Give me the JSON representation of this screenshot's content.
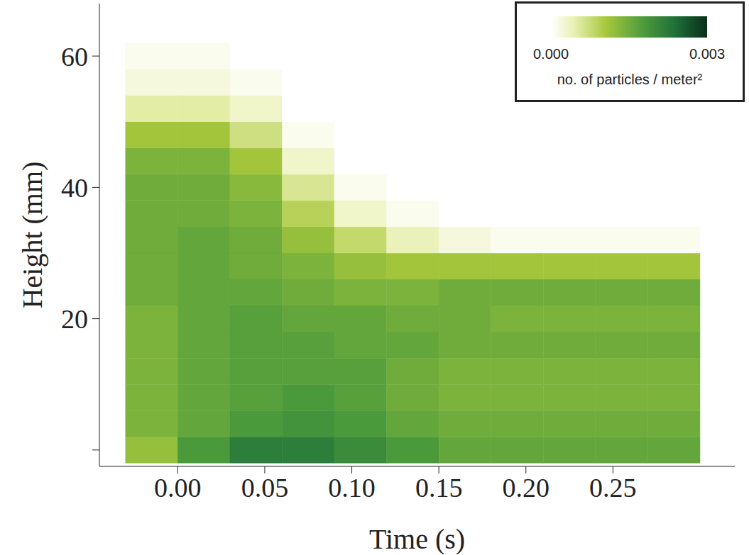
{
  "chart_data": {
    "type": "heatmap",
    "xlabel": "Time (s)",
    "ylabel": "Height (mm)",
    "xlim": [
      -0.045,
      0.32
    ],
    "ylim": [
      -2.5,
      68
    ],
    "xticks": [
      {
        "value": 0,
        "label": "0.00"
      },
      {
        "value": 0.05,
        "label": "0.05"
      },
      {
        "value": 0.1,
        "label": "0.10"
      },
      {
        "value": 0.15,
        "label": "0.15"
      },
      {
        "value": 0.2,
        "label": "0.20"
      },
      {
        "value": 0.25,
        "label": "0.25"
      }
    ],
    "yticks": [
      0,
      20,
      40,
      60
    ],
    "heatmap": {
      "x_bins": [
        -0.03,
        0.0,
        0.03,
        0.06,
        0.09,
        0.12,
        0.15,
        0.18,
        0.21,
        0.24,
        0.27,
        0.3
      ],
      "y_bins": [
        -2,
        2,
        6,
        10,
        14,
        18,
        22,
        26,
        30,
        34,
        38,
        42,
        46,
        50,
        54,
        58,
        62
      ],
      "values": [
        [
          0.0012,
          0.0018,
          0.0022,
          0.0022,
          0.002,
          0.0018,
          0.0016,
          0.0016,
          0.0016,
          0.0016,
          0.0016
        ],
        [
          0.0014,
          0.0016,
          0.0018,
          0.0019,
          0.0018,
          0.0016,
          0.0015,
          0.0015,
          0.0015,
          0.0015,
          0.0015
        ],
        [
          0.0014,
          0.0016,
          0.0017,
          0.0018,
          0.0017,
          0.0015,
          0.0014,
          0.0014,
          0.0014,
          0.0014,
          0.0014
        ],
        [
          0.0014,
          0.0016,
          0.0017,
          0.0017,
          0.0017,
          0.0015,
          0.0014,
          0.0014,
          0.0014,
          0.0014,
          0.0014
        ],
        [
          0.0014,
          0.0016,
          0.0017,
          0.0017,
          0.0016,
          0.0016,
          0.0015,
          0.0015,
          0.0015,
          0.0015,
          0.0015
        ],
        [
          0.0014,
          0.0016,
          0.0017,
          0.0016,
          0.0016,
          0.0015,
          0.0015,
          0.0014,
          0.0014,
          0.0014,
          0.0014
        ],
        [
          0.0015,
          0.0016,
          0.0016,
          0.0015,
          0.0014,
          0.0014,
          0.0015,
          0.0015,
          0.0015,
          0.0015,
          0.0015
        ],
        [
          0.0015,
          0.0016,
          0.0015,
          0.0014,
          0.0012,
          0.0011,
          0.0011,
          0.0011,
          0.0011,
          0.0011,
          0.0011
        ],
        [
          0.0015,
          0.0016,
          0.0015,
          0.0012,
          0.0008,
          0.0004,
          0.0002,
          0.0001,
          0.0001,
          0.0001,
          0.0001
        ],
        [
          0.0015,
          0.0015,
          0.0014,
          0.0009,
          0.0003,
          0.0001,
          0,
          0,
          0,
          0,
          0
        ],
        [
          0.0015,
          0.0015,
          0.0013,
          0.0006,
          0.0001,
          0,
          0,
          0,
          0,
          0,
          0
        ],
        [
          0.0014,
          0.0014,
          0.0011,
          0.0003,
          0,
          0,
          0,
          0,
          0,
          0,
          0
        ],
        [
          0.0011,
          0.0011,
          0.0007,
          0.0001,
          0,
          0,
          0,
          0,
          0,
          0,
          0
        ],
        [
          0.0005,
          0.0005,
          0.0003,
          0,
          0,
          0,
          0,
          0,
          0,
          0,
          0
        ],
        [
          0.0002,
          0.0002,
          0.0001,
          0,
          0,
          0,
          0,
          0,
          0,
          0,
          0
        ],
        [
          0.0001,
          0.0001,
          0,
          0,
          0,
          0,
          0,
          0,
          0,
          0,
          0
        ]
      ]
    },
    "colorbar": {
      "range": [
        0,
        0.003
      ],
      "ticks": [
        {
          "value": 0,
          "label": "0.000"
        },
        {
          "value": 0.003,
          "label": "0.003"
        }
      ],
      "label": "no. of particles / meter²"
    }
  }
}
